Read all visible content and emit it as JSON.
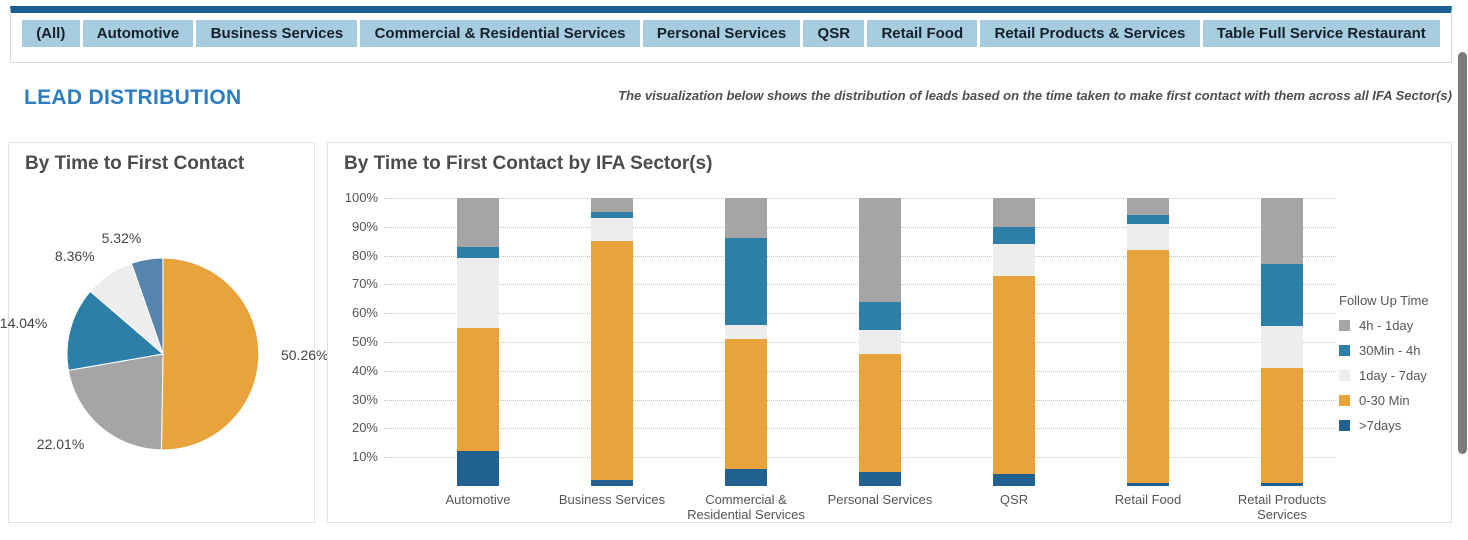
{
  "filter_tabs": [
    "(All)",
    "Automotive",
    "Business Services",
    "Commercial & Residential Services",
    "Personal Services",
    "QSR",
    "Retail Food",
    "Retail Products & Services",
    "Table Full Service Restaurant"
  ],
  "header": {
    "title": "LEAD DISTRIBUTION",
    "description": "The visualization below shows the distribution of leads based on the time taken to make first contact with them across all IFA Sector(s)"
  },
  "colors": {
    "accent_blue": "#2e7dc2",
    "card_top_border": "#1d6094",
    "tab_bg": "#a8ccdf",
    "orange": "#e8a33d",
    "gray": "#a5a5a5",
    "teal_blue": "#2e7fa8",
    "light_gray": "#ededed",
    "dark_blue": "#20618f",
    "pie_steel_blue": "#5585ad"
  },
  "legend": {
    "title": "Follow Up Time",
    "items": [
      {
        "label": "4h - 1day",
        "color": "#a5a5a5"
      },
      {
        "label": "30Min - 4h",
        "color": "#2e7fa8"
      },
      {
        "label": "1day - 7day",
        "color": "#ededed"
      },
      {
        "label": "0-30 Min",
        "color": "#e8a33d"
      },
      {
        "label": ">7days",
        "color": "#20618f"
      }
    ]
  },
  "chart_data": [
    {
      "type": "pie",
      "title": "By Time to First Contact",
      "start_at": "12-oclock-clockwise",
      "slices": [
        {
          "label": "0-30 Min",
          "value": 50.26,
          "display": "50.26%",
          "color": "#e8a33d"
        },
        {
          "label": "4h - 1day",
          "value": 22.01,
          "display": "22.01%",
          "color": "#a5a5a5"
        },
        {
          "label": "30Min - 4h",
          "value": 14.04,
          "display": "14.04%",
          "color": "#2e7fa8"
        },
        {
          "label": "1day - 7day",
          "value": 8.36,
          "display": "8.36%",
          "color": "#ededed"
        },
        {
          "label": ">7days",
          "value": 5.32,
          "display": "5.32%",
          "color": "#5585ad"
        }
      ]
    },
    {
      "type": "bar",
      "stacked": true,
      "title": "By Time to First Contact by IFA Sector(s)",
      "categories": [
        "Automotive",
        "Business Services",
        "Commercial & Residential Services",
        "Personal Services",
        "QSR",
        "Retail Food",
        "Retail Products Services"
      ],
      "category_lines": [
        [
          "Automotive"
        ],
        [
          "Business Services"
        ],
        [
          "Commercial &",
          "Residential Services"
        ],
        [
          "Personal Services"
        ],
        [
          "QSR"
        ],
        [
          "Retail Food"
        ],
        [
          "Retail Products",
          "Services"
        ]
      ],
      "series": [
        {
          "name": ">7days",
          "color": "#20618f",
          "values": [
            12,
            2,
            6,
            5,
            4,
            1,
            1
          ]
        },
        {
          "name": "0-30 Min",
          "color": "#e8a33d",
          "values": [
            43,
            83,
            45,
            41,
            69,
            81,
            40
          ]
        },
        {
          "name": "1day - 7day",
          "color": "#ededed",
          "values": [
            24,
            8,
            5,
            8,
            11,
            9,
            14.5
          ]
        },
        {
          "name": "30Min - 4h",
          "color": "#2e7fa8",
          "values": [
            4,
            2,
            30,
            10,
            6,
            3,
            21.5
          ]
        },
        {
          "name": "4h - 1day",
          "color": "#a5a5a5",
          "values": [
            17,
            5,
            14,
            36,
            10,
            6,
            23
          ]
        }
      ],
      "ylabel": "",
      "xlabel": "",
      "ylim": [
        0,
        100
      ],
      "y_ticks": [
        "10%",
        "20%",
        "30%",
        "40%",
        "50%",
        "60%",
        "70%",
        "80%",
        "90%",
        "100%"
      ],
      "grid": "dotted-horizontal",
      "legend_position": "right",
      "legend_title": "Follow Up Time"
    }
  ]
}
